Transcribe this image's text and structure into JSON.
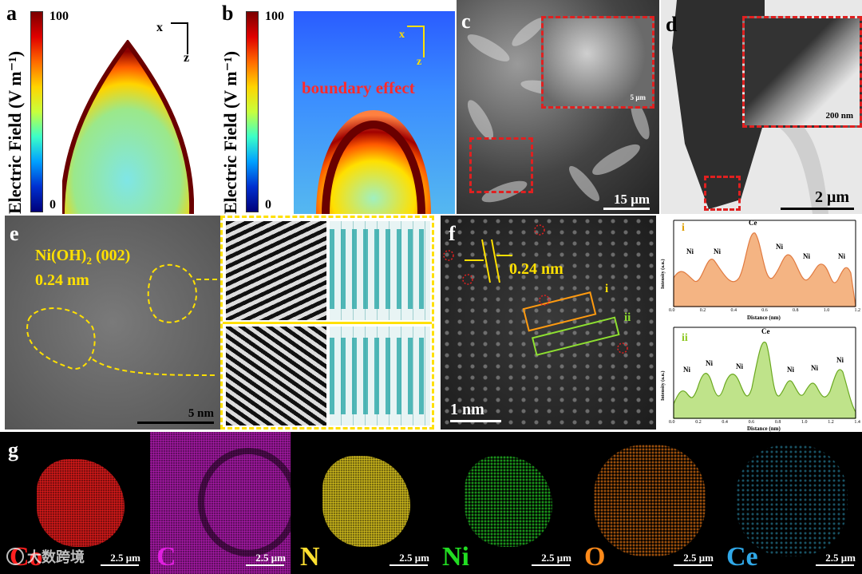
{
  "panels": {
    "a": {
      "label": "a",
      "colorbar_max": "100",
      "colorbar_min": "0",
      "colorbar_title": "Electric Field (V m⁻¹)",
      "axis_x": "x",
      "axis_z": "z"
    },
    "b": {
      "label": "b",
      "colorbar_max": "100",
      "colorbar_min": "0",
      "colorbar_title": "Electric Field (V m⁻¹)",
      "axis_x": "x",
      "axis_z": "z",
      "annotation": "boundary effect"
    },
    "c": {
      "label": "c",
      "inset_scale": "5 μm",
      "scale": "15 μm"
    },
    "d": {
      "label": "d",
      "inset_scale": "200 nm",
      "scale": "2 μm"
    },
    "e": {
      "label": "e",
      "phase": "Ni(OH)",
      "phase_sub": "2",
      "plane": " (002)",
      "spacing": "0.24 nm",
      "scale": "5 nm"
    },
    "f": {
      "label": "f",
      "spacing": "0.24 nm",
      "scale": "1 nm",
      "box_i": "i",
      "box_ii": "ii"
    },
    "profile_i": {
      "tag": "i",
      "ylabel": "Intensity (a.u.)",
      "xlabel": "Distance (nm)",
      "peaks": [
        "Ni",
        "Ni",
        "Ce",
        "Ni",
        "Ni",
        "Ni"
      ],
      "ticks": [
        "0.0",
        "0.2",
        "0.4",
        "0.6",
        "0.8",
        "1.0",
        "1.2"
      ]
    },
    "profile_ii": {
      "tag": "ii",
      "ylabel": "Intensity (a.u.)",
      "xlabel": "Distance (nm)",
      "peaks": [
        "Ni",
        "Ni",
        "Ni",
        "Ce",
        "Ni",
        "Ni",
        "Ni"
      ],
      "ticks": [
        "0.0",
        "0.2",
        "0.4",
        "0.6",
        "0.8",
        "1.0",
        "1.2",
        "1.4"
      ]
    },
    "g": {
      "label": "g",
      "maps": [
        {
          "element": "Co",
          "scale": "2.5 μm",
          "color": "#ff2020"
        },
        {
          "element": "C",
          "scale": "2.5 μm",
          "color": "#e020e0"
        },
        {
          "element": "N",
          "scale": "2.5 μm",
          "color": "#ffe030"
        },
        {
          "element": "Ni",
          "scale": "2.5 μm",
          "color": "#22dd22"
        },
        {
          "element": "O",
          "scale": "2.5 μm",
          "color": "#ff8a1a"
        },
        {
          "element": "Ce",
          "scale": "2.5 μm",
          "color": "#30a8e8"
        }
      ]
    }
  },
  "watermark": "大数跨境"
}
